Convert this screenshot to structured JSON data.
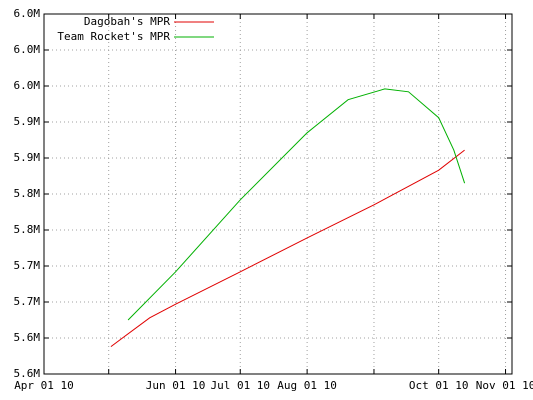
{
  "chart_data": {
    "type": "line",
    "xlim": [
      "2010-04-01",
      "2010-11-04"
    ],
    "xticks": [
      {
        "value": "2010-04-01",
        "label": "Apr 01 10"
      },
      {
        "value": "2010-05-01",
        "label": null
      },
      {
        "value": "2010-06-01",
        "label": "Jun 01 10"
      },
      {
        "value": "2010-07-01",
        "label": "Jul 01 10"
      },
      {
        "value": "2010-08-01",
        "label": "Aug 01 10"
      },
      {
        "value": "2010-09-01",
        "label": null
      },
      {
        "value": "2010-10-01",
        "label": "Oct 01 10"
      },
      {
        "value": "2010-11-01",
        "label": "Nov 01 10"
      }
    ],
    "ylim": [
      5550000,
      6050000
    ],
    "yticks": [
      {
        "value": 5550000,
        "label": "5.6M"
      },
      {
        "value": 5600000,
        "label": "5.6M"
      },
      {
        "value": 5650000,
        "label": "5.7M"
      },
      {
        "value": 5700000,
        "label": "5.7M"
      },
      {
        "value": 5750000,
        "label": "5.8M"
      },
      {
        "value": 5800000,
        "label": "5.8M"
      },
      {
        "value": 5850000,
        "label": "5.9M"
      },
      {
        "value": 5900000,
        "label": "5.9M"
      },
      {
        "value": 5950000,
        "label": "6.0M"
      },
      {
        "value": 6000000,
        "label": "6.0M"
      },
      {
        "value": 6050000,
        "label": "6.0M"
      }
    ],
    "grid": true,
    "legend": "top-left",
    "series": [
      {
        "name": "Dagobah's MPR",
        "color": "#e00000",
        "x": [
          "2010-05-02",
          "2010-05-20",
          "2010-06-01",
          "2010-07-01",
          "2010-08-01",
          "2010-09-01",
          "2010-10-01",
          "2010-10-13"
        ],
        "values": [
          5588000,
          5628000,
          5647000,
          5692000,
          5739000,
          5785000,
          5833000,
          5861000
        ]
      },
      {
        "name": "Team Rocket's MPR",
        "color": "#00b000",
        "x": [
          "2010-05-10",
          "2010-06-01",
          "2010-07-01",
          "2010-08-01",
          "2010-08-20",
          "2010-09-06",
          "2010-09-17",
          "2010-10-01",
          "2010-10-08",
          "2010-10-13"
        ],
        "values": [
          5625000,
          5692000,
          5792000,
          5885000,
          5931000,
          5946000,
          5942000,
          5906000,
          5861000,
          5815000
        ]
      }
    ]
  }
}
